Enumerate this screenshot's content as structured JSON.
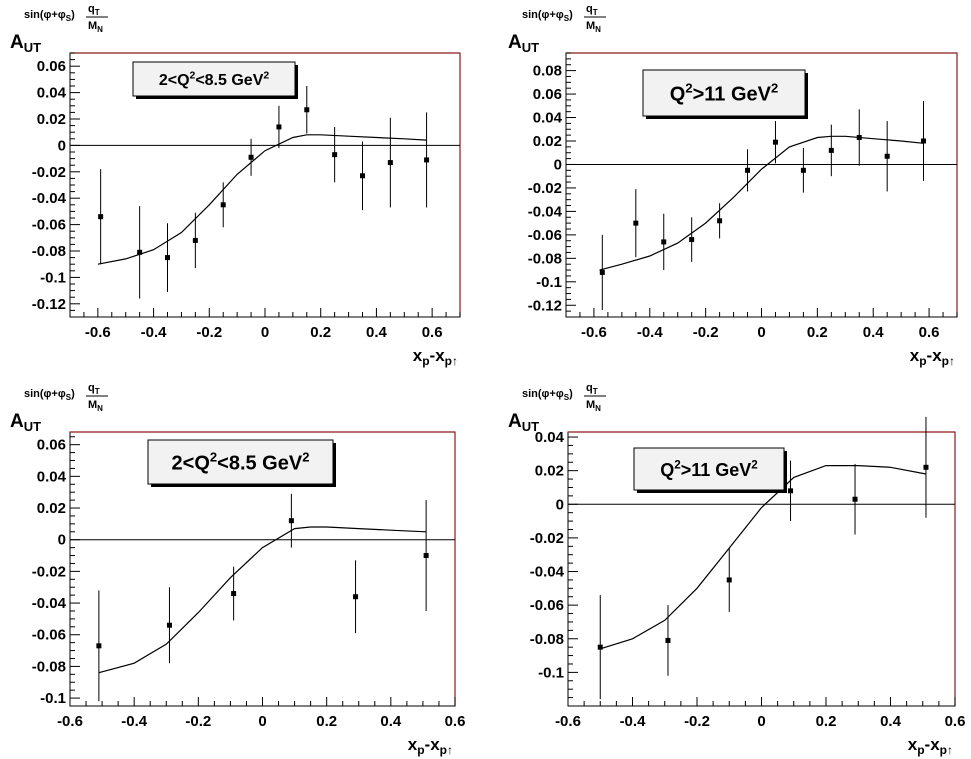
{
  "chart_data": [
    {
      "type": "scatter",
      "title": "2<Q2<8.5 GeV2",
      "title_parts": {
        "pre": "2<Q",
        "sup1": "2",
        "mid": "<8.5 GeV",
        "sup2": "2"
      },
      "ylabel": {
        "main": "A",
        "sub": "UT",
        "sup_pre": "sin(φ+φ",
        "sup_sub": "S",
        "sup_post": ")",
        "frac_num": "q",
        "frac_num_sub": "T",
        "frac_den": "M",
        "frac_den_sub": "N"
      },
      "xlabel": {
        "p1": "x",
        "s1": "p",
        "mid": "-x",
        "s2": "p↑"
      },
      "xlim": [
        -0.7,
        0.7
      ],
      "ylim": [
        -0.13,
        0.07
      ],
      "xticks": [
        -0.6,
        -0.4,
        -0.2,
        0,
        0.2,
        0.4,
        0.6
      ],
      "xtick_labels": [
        "-0.6",
        "-0.4",
        "-0.2",
        "0",
        "0.2",
        "0.4",
        "0.6"
      ],
      "yticks": [
        0.06,
        0.04,
        0.02,
        0,
        -0.02,
        -0.04,
        -0.06,
        -0.08,
        -0.1,
        -0.12
      ],
      "ytick_labels": [
        "0.06",
        "0.04",
        "0.02",
        "0",
        "-0.02",
        "-0.04",
        "-0.06",
        "-0.08",
        "-0.1",
        "-0.12"
      ],
      "points": [
        {
          "x": -0.59,
          "y": -0.054,
          "err": 0.036
        },
        {
          "x": -0.45,
          "y": -0.081,
          "err": 0.035
        },
        {
          "x": -0.35,
          "y": -0.085,
          "err": 0.026
        },
        {
          "x": -0.25,
          "y": -0.072,
          "err": 0.021
        },
        {
          "x": -0.15,
          "y": -0.045,
          "err": 0.017
        },
        {
          "x": -0.05,
          "y": -0.009,
          "err": 0.014
        },
        {
          "x": 0.05,
          "y": 0.014,
          "err": 0.016
        },
        {
          "x": 0.15,
          "y": 0.027,
          "err": 0.018
        },
        {
          "x": 0.25,
          "y": -0.007,
          "err": 0.021
        },
        {
          "x": 0.35,
          "y": -0.023,
          "err": 0.026
        },
        {
          "x": 0.45,
          "y": -0.013,
          "err": 0.034
        },
        {
          "x": 0.58,
          "y": -0.011,
          "err": 0.036
        }
      ],
      "curve": {
        "x": [
          -0.6,
          -0.5,
          -0.4,
          -0.3,
          -0.2,
          -0.1,
          0,
          0.1,
          0.15,
          0.2,
          0.3,
          0.4,
          0.5,
          0.58
        ],
        "y": [
          -0.09,
          -0.086,
          -0.079,
          -0.066,
          -0.045,
          -0.022,
          -0.004,
          0.006,
          0.008,
          0.008,
          0.007,
          0.006,
          0.005,
          0.004
        ]
      },
      "zero_line": true
    },
    {
      "type": "scatter",
      "title": "Q2>11 GeV2",
      "title_parts": {
        "pre": "Q",
        "sup1": "2",
        "mid": ">11 GeV",
        "sup2": "2"
      },
      "ylabel": {
        "main": "A",
        "sub": "UT",
        "sup_pre": "sin(φ+φ",
        "sup_sub": "S",
        "sup_post": ")",
        "frac_num": "q",
        "frac_num_sub": "T",
        "frac_den": "M",
        "frac_den_sub": "N"
      },
      "xlabel": {
        "p1": "x",
        "s1": "p",
        "mid": "-x",
        "s2": "p↑"
      },
      "xlim": [
        -0.7,
        0.7
      ],
      "ylim": [
        -0.13,
        0.095
      ],
      "xticks": [
        -0.6,
        -0.4,
        -0.2,
        0,
        0.2,
        0.4,
        0.6
      ],
      "xtick_labels": [
        "-0.6",
        "-0.4",
        "-0.2",
        "0",
        "0.2",
        "0.4",
        "0.6"
      ],
      "yticks": [
        0.08,
        0.06,
        0.04,
        0.02,
        0,
        -0.02,
        -0.04,
        -0.06,
        -0.08,
        -0.1,
        -0.12
      ],
      "ytick_labels": [
        "0.08",
        "0.06",
        "0.04",
        "0.02",
        "0",
        "-0.02",
        "-0.04",
        "-0.06",
        "-0.08",
        "-0.1",
        "-0.12"
      ],
      "points": [
        {
          "x": -0.57,
          "y": -0.092,
          "err": 0.032
        },
        {
          "x": -0.45,
          "y": -0.05,
          "err": 0.029
        },
        {
          "x": -0.35,
          "y": -0.066,
          "err": 0.024
        },
        {
          "x": -0.25,
          "y": -0.064,
          "err": 0.019
        },
        {
          "x": -0.15,
          "y": -0.048,
          "err": 0.015
        },
        {
          "x": -0.05,
          "y": -0.005,
          "err": 0.018
        },
        {
          "x": 0.05,
          "y": 0.019,
          "err": 0.018
        },
        {
          "x": 0.15,
          "y": -0.005,
          "err": 0.019
        },
        {
          "x": 0.25,
          "y": 0.012,
          "err": 0.022
        },
        {
          "x": 0.35,
          "y": 0.023,
          "err": 0.024
        },
        {
          "x": 0.45,
          "y": 0.007,
          "err": 0.03
        },
        {
          "x": 0.58,
          "y": 0.02,
          "err": 0.034
        }
      ],
      "curve": {
        "x": [
          -0.58,
          -0.5,
          -0.4,
          -0.3,
          -0.2,
          -0.1,
          0,
          0.1,
          0.2,
          0.25,
          0.3,
          0.4,
          0.5,
          0.58
        ],
        "y": [
          -0.09,
          -0.085,
          -0.078,
          -0.067,
          -0.05,
          -0.028,
          -0.004,
          0.015,
          0.023,
          0.024,
          0.024,
          0.022,
          0.02,
          0.018
        ]
      },
      "zero_line": true
    },
    {
      "type": "scatter",
      "title": "2<Q2<8.5 GeV2",
      "title_parts": {
        "pre": "2<Q",
        "sup1": "2",
        "mid": "<8.5 GeV",
        "sup2": "2"
      },
      "ylabel": {
        "main": "A",
        "sub": "UT",
        "sup_pre": "sin(φ+φ",
        "sup_sub": "S",
        "sup_post": ")",
        "frac_num": "q",
        "frac_num_sub": "T",
        "frac_den": "M",
        "frac_den_sub": "N"
      },
      "xlabel": {
        "p1": "x",
        "s1": "p",
        "mid": "-x",
        "s2": "p↑"
      },
      "xlim": [
        -0.6,
        0.6
      ],
      "ylim": [
        -0.105,
        0.068
      ],
      "xticks": [
        -0.6,
        -0.4,
        -0.2,
        0,
        0.2,
        0.4,
        0.6
      ],
      "xtick_labels": [
        "-0.6",
        "-0.4",
        "-0.2",
        "0",
        "0.2",
        "0.4",
        "0.6"
      ],
      "yticks": [
        0.06,
        0.04,
        0.02,
        0,
        -0.02,
        -0.04,
        -0.06,
        -0.08,
        -0.1
      ],
      "ytick_labels": [
        "0.06",
        "0.04",
        "0.02",
        "0",
        "-0.02",
        "-0.04",
        "-0.06",
        "-0.08",
        "-0.1"
      ],
      "points": [
        {
          "x": -0.51,
          "y": -0.067,
          "err": 0.035
        },
        {
          "x": -0.29,
          "y": -0.054,
          "err": 0.024
        },
        {
          "x": -0.09,
          "y": -0.034,
          "err": 0.017
        },
        {
          "x": 0.09,
          "y": 0.012,
          "err": 0.017
        },
        {
          "x": 0.29,
          "y": -0.036,
          "err": 0.023
        },
        {
          "x": 0.51,
          "y": -0.01,
          "err": 0.035
        }
      ],
      "curve": {
        "x": [
          -0.51,
          -0.4,
          -0.3,
          -0.2,
          -0.1,
          0,
          0.1,
          0.15,
          0.2,
          0.3,
          0.4,
          0.51
        ],
        "y": [
          -0.084,
          -0.078,
          -0.066,
          -0.046,
          -0.024,
          -0.005,
          0.007,
          0.008,
          0.008,
          0.007,
          0.006,
          0.005
        ]
      },
      "zero_line": true
    },
    {
      "type": "scatter",
      "title": "Q2>11 GeV2",
      "title_parts": {
        "pre": "Q",
        "sup1": "2",
        "mid": ">11 GeV",
        "sup2": "2"
      },
      "ylabel": {
        "main": "A",
        "sub": "UT",
        "sup_pre": "sin(φ+φ",
        "sup_sub": "S",
        "sup_post": ")",
        "frac_num": "q",
        "frac_num_sub": "T",
        "frac_den": "M",
        "frac_den_sub": "N"
      },
      "xlabel": {
        "p1": "x",
        "s1": "p",
        "mid": "-x",
        "s2": "p↑"
      },
      "xlim": [
        -0.6,
        0.6
      ],
      "ylim": [
        -0.12,
        0.043
      ],
      "xticks": [
        -0.6,
        -0.4,
        -0.2,
        0,
        0.2,
        0.4,
        0.6
      ],
      "xtick_labels": [
        "-0.6",
        "-0.4",
        "-0.2",
        "0",
        "0.2",
        "0.4",
        "0.6"
      ],
      "yticks": [
        0.04,
        0.02,
        0,
        -0.02,
        -0.04,
        -0.06,
        -0.08,
        -0.1
      ],
      "ytick_labels": [
        "0.04",
        "0.02",
        "0",
        "-0.02",
        "-0.04",
        "-0.06",
        "-0.08",
        "-0.1"
      ],
      "points": [
        {
          "x": -0.5,
          "y": -0.085,
          "err": 0.031
        },
        {
          "x": -0.29,
          "y": -0.081,
          "err": 0.021
        },
        {
          "x": -0.1,
          "y": -0.045,
          "err": 0.019
        },
        {
          "x": 0.09,
          "y": 0.008,
          "err": 0.018
        },
        {
          "x": 0.29,
          "y": 0.003,
          "err": 0.021
        },
        {
          "x": 0.51,
          "y": 0.022,
          "err": 0.03
        }
      ],
      "curve": {
        "x": [
          -0.5,
          -0.4,
          -0.3,
          -0.2,
          -0.1,
          0,
          0.1,
          0.2,
          0.3,
          0.4,
          0.51
        ],
        "y": [
          -0.086,
          -0.08,
          -0.069,
          -0.05,
          -0.026,
          -0.002,
          0.016,
          0.023,
          0.023,
          0.022,
          0.018
        ]
      },
      "zero_line": true
    }
  ]
}
